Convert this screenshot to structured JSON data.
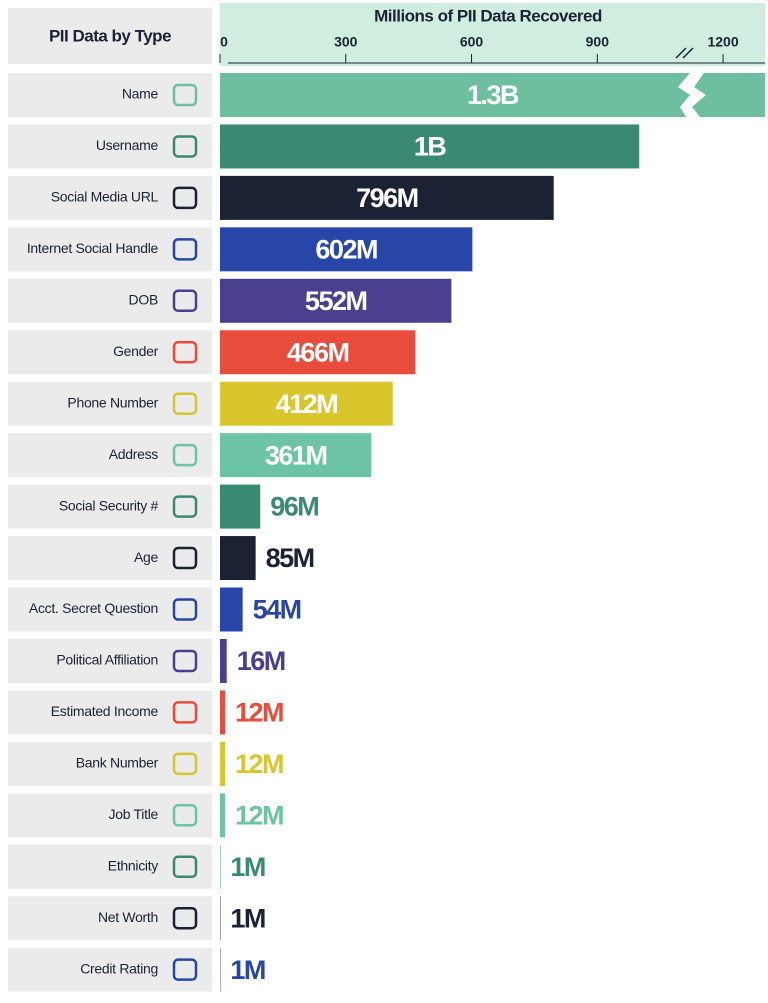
{
  "chart_data": {
    "type": "bar",
    "orientation": "horizontal",
    "title": "Millions of PII Data Recovered",
    "category_header": "PII Data by Type",
    "categories": [
      "Name",
      "Username",
      "Social Media URL",
      "Internet Social Handle",
      "DOB",
      "Gender",
      "Phone Number",
      "Address",
      "Social Security #",
      "Age",
      "Acct. Secret Question",
      "Political Affiliation",
      "Estimated Income",
      "Bank Number",
      "Job Title",
      "Ethnicity",
      "Net Worth",
      "Credit Rating"
    ],
    "values": [
      1300,
      1000,
      796,
      602,
      552,
      466,
      412,
      361,
      96,
      85,
      54,
      16,
      12,
      12,
      12,
      1,
      1,
      1
    ],
    "value_labels": [
      "1.3B",
      "1B",
      "796M",
      "602M",
      "552M",
      "466M",
      "412M",
      "361M",
      "96M",
      "85M",
      "54M",
      "16M",
      "12M",
      "12M",
      "12M",
      "1M",
      "1M",
      "1M"
    ],
    "colors": [
      "#6dbf9f",
      "#3a8a73",
      "#1b2233",
      "#2845a8",
      "#4b3f8f",
      "#e84c3d",
      "#d8c62c",
      "#6cc4a4",
      "#3a8a73",
      "#1b2233",
      "#2845a8",
      "#4b3f8f",
      "#e84c3d",
      "#d8c62c",
      "#6cc4a4",
      "#3a8a73",
      "#1b2233",
      "#2845a8"
    ],
    "xlim": [
      0,
      1300
    ],
    "xticks": [
      0,
      300,
      600,
      900,
      1200
    ]
  }
}
